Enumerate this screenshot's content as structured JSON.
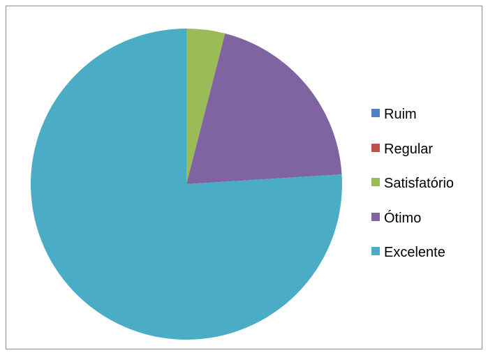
{
  "chart_data": {
    "type": "pie",
    "categories": [
      "Ruim",
      "Regular",
      "Satisfatório",
      "Ótimo",
      "Excelente"
    ],
    "values": [
      0,
      0,
      4,
      20,
      76
    ],
    "colors": [
      "#4F81BD",
      "#C0504D",
      "#9BBB59",
      "#8064A2",
      "#4BACC6"
    ],
    "legend_position": "right"
  }
}
